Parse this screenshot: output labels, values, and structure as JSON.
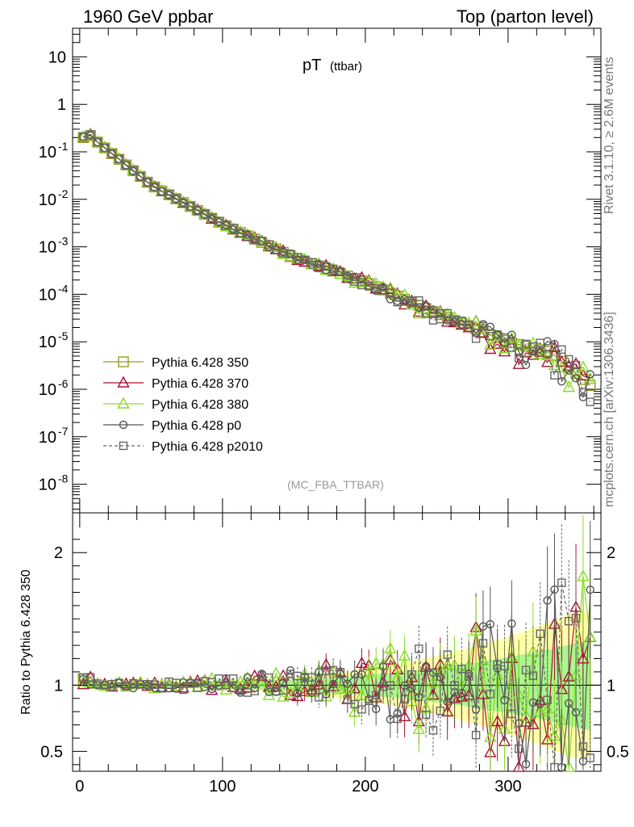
{
  "header": {
    "left": "1960 GeV ppbar",
    "right": "Top (parton level)"
  },
  "side_text": {
    "rivet": "Rivet 3.1.10, ≥ 2.6M events",
    "source": "mcplots.cern.ch [arXiv:1306.3436]"
  },
  "chart_data": [
    {
      "type": "scatter",
      "title": "pT",
      "title_sub": "(ttbar)",
      "watermark": "(MC_FBA_TTBAR)",
      "xlim": [
        -5,
        365
      ],
      "ylim": [
        2.5e-09,
        40
      ],
      "log_y": true,
      "y_ticks": [
        {
          "value": 1e-08,
          "label": "10",
          "exp": "-8"
        },
        {
          "value": 1e-07,
          "label": "10",
          "exp": "-7"
        },
        {
          "value": 1e-06,
          "label": "10",
          "exp": "-6"
        },
        {
          "value": 1e-05,
          "label": "10",
          "exp": "-5"
        },
        {
          "value": 0.0001,
          "label": "10",
          "exp": "-4"
        },
        {
          "value": 0.001,
          "label": "10",
          "exp": "-3"
        },
        {
          "value": 0.01,
          "label": "10",
          "exp": "-2"
        },
        {
          "value": 0.1,
          "label": "10",
          "exp": "-1"
        },
        {
          "value": 1,
          "label": "1",
          "exp": ""
        },
        {
          "value": 10,
          "label": "10",
          "exp": ""
        }
      ],
      "legend_position": "bottom-left",
      "series": [
        {
          "name": "Pythia 6.428 350",
          "color": "#999922",
          "marker": "square-open",
          "line": "solid"
        },
        {
          "name": "Pythia 6.428 370",
          "color": "#aa1133",
          "marker": "triangle-open",
          "line": "solid"
        },
        {
          "name": "Pythia 6.428 380",
          "color": "#88dd22",
          "marker": "triangle-open",
          "line": "solid"
        },
        {
          "name": "Pythia 6.428 p0",
          "color": "#555555",
          "marker": "circle-open",
          "line": "solid"
        },
        {
          "name": "Pythia 6.428 p2010",
          "color": "#666666",
          "marker": "square-open-small",
          "line": "dashed"
        }
      ],
      "shape": {
        "x_start": 2.5,
        "x_step": 5,
        "n_points": 72,
        "values_at": [
          {
            "x": 2.5,
            "y": 0.2
          },
          {
            "x": 7.5,
            "y": 0.22
          },
          {
            "x": 12.5,
            "y": 0.16
          },
          {
            "x": 50,
            "y": 0.02
          },
          {
            "x": 100,
            "y": 0.003
          },
          {
            "x": 150,
            "y": 0.0006
          },
          {
            "x": 200,
            "y": 0.00018
          },
          {
            "x": 250,
            "y": 4e-05
          },
          {
            "x": 300,
            "y": 1e-05
          },
          {
            "x": 330,
            "y": 6e-06
          },
          {
            "x": 357.5,
            "y": 1.2e-06
          }
        ]
      }
    },
    {
      "type": "scatter",
      "ylabel": "Ratio to Pythia 6.428 350",
      "xlim": [
        -5,
        365
      ],
      "ylim": [
        0.35,
        2.3
      ],
      "y_ticks": [
        0.5,
        1,
        2
      ],
      "x_ticks": [
        0,
        100,
        200,
        300
      ],
      "reference_line": 1
    }
  ]
}
